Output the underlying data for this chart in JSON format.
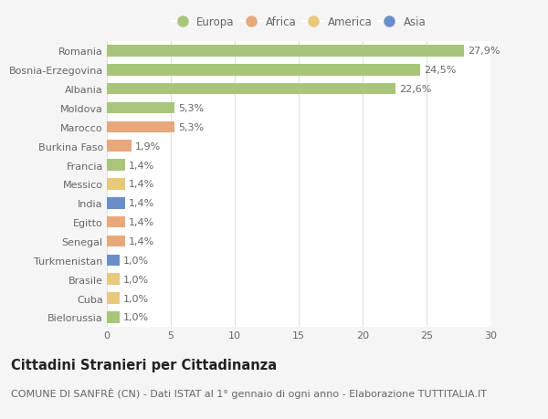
{
  "categories": [
    "Romania",
    "Bosnia-Erzegovina",
    "Albania",
    "Moldova",
    "Marocco",
    "Burkina Faso",
    "Francia",
    "Messico",
    "India",
    "Egitto",
    "Senegal",
    "Turkmenistan",
    "Brasile",
    "Cuba",
    "Bielorussia"
  ],
  "values": [
    27.9,
    24.5,
    22.6,
    5.3,
    5.3,
    1.9,
    1.4,
    1.4,
    1.4,
    1.4,
    1.4,
    1.0,
    1.0,
    1.0,
    1.0
  ],
  "labels": [
    "27,9%",
    "24,5%",
    "22,6%",
    "5,3%",
    "5,3%",
    "1,9%",
    "1,4%",
    "1,4%",
    "1,4%",
    "1,4%",
    "1,4%",
    "1,0%",
    "1,0%",
    "1,0%",
    "1,0%"
  ],
  "colors": [
    "#a8c57a",
    "#a8c57a",
    "#a8c57a",
    "#a8c57a",
    "#e8a87c",
    "#e8a87c",
    "#a8c57a",
    "#e8c87a",
    "#6a8fc8",
    "#e8a87c",
    "#e8a87c",
    "#6a8fc8",
    "#e8c87a",
    "#e8c87a",
    "#a8c57a"
  ],
  "legend_labels": [
    "Europa",
    "Africa",
    "America",
    "Asia"
  ],
  "legend_colors": [
    "#a8c57a",
    "#e8a87c",
    "#e8c87a",
    "#6a8fc8"
  ],
  "title": "Cittadini Stranieri per Cittadinanza",
  "subtitle": "COMUNE DI SANFRÈ (CN) - Dati ISTAT al 1° gennaio di ogni anno - Elaborazione TUTTITALIA.IT",
  "xlim": [
    0,
    30
  ],
  "xticks": [
    0,
    5,
    10,
    15,
    20,
    25,
    30
  ],
  "background_color": "#f5f5f5",
  "plot_bg_color": "#ffffff",
  "grid_color": "#e0e0e0",
  "text_color": "#666666",
  "title_color": "#222222",
  "title_fontsize": 10.5,
  "subtitle_fontsize": 8,
  "label_fontsize": 8,
  "tick_fontsize": 8,
  "legend_fontsize": 8.5
}
